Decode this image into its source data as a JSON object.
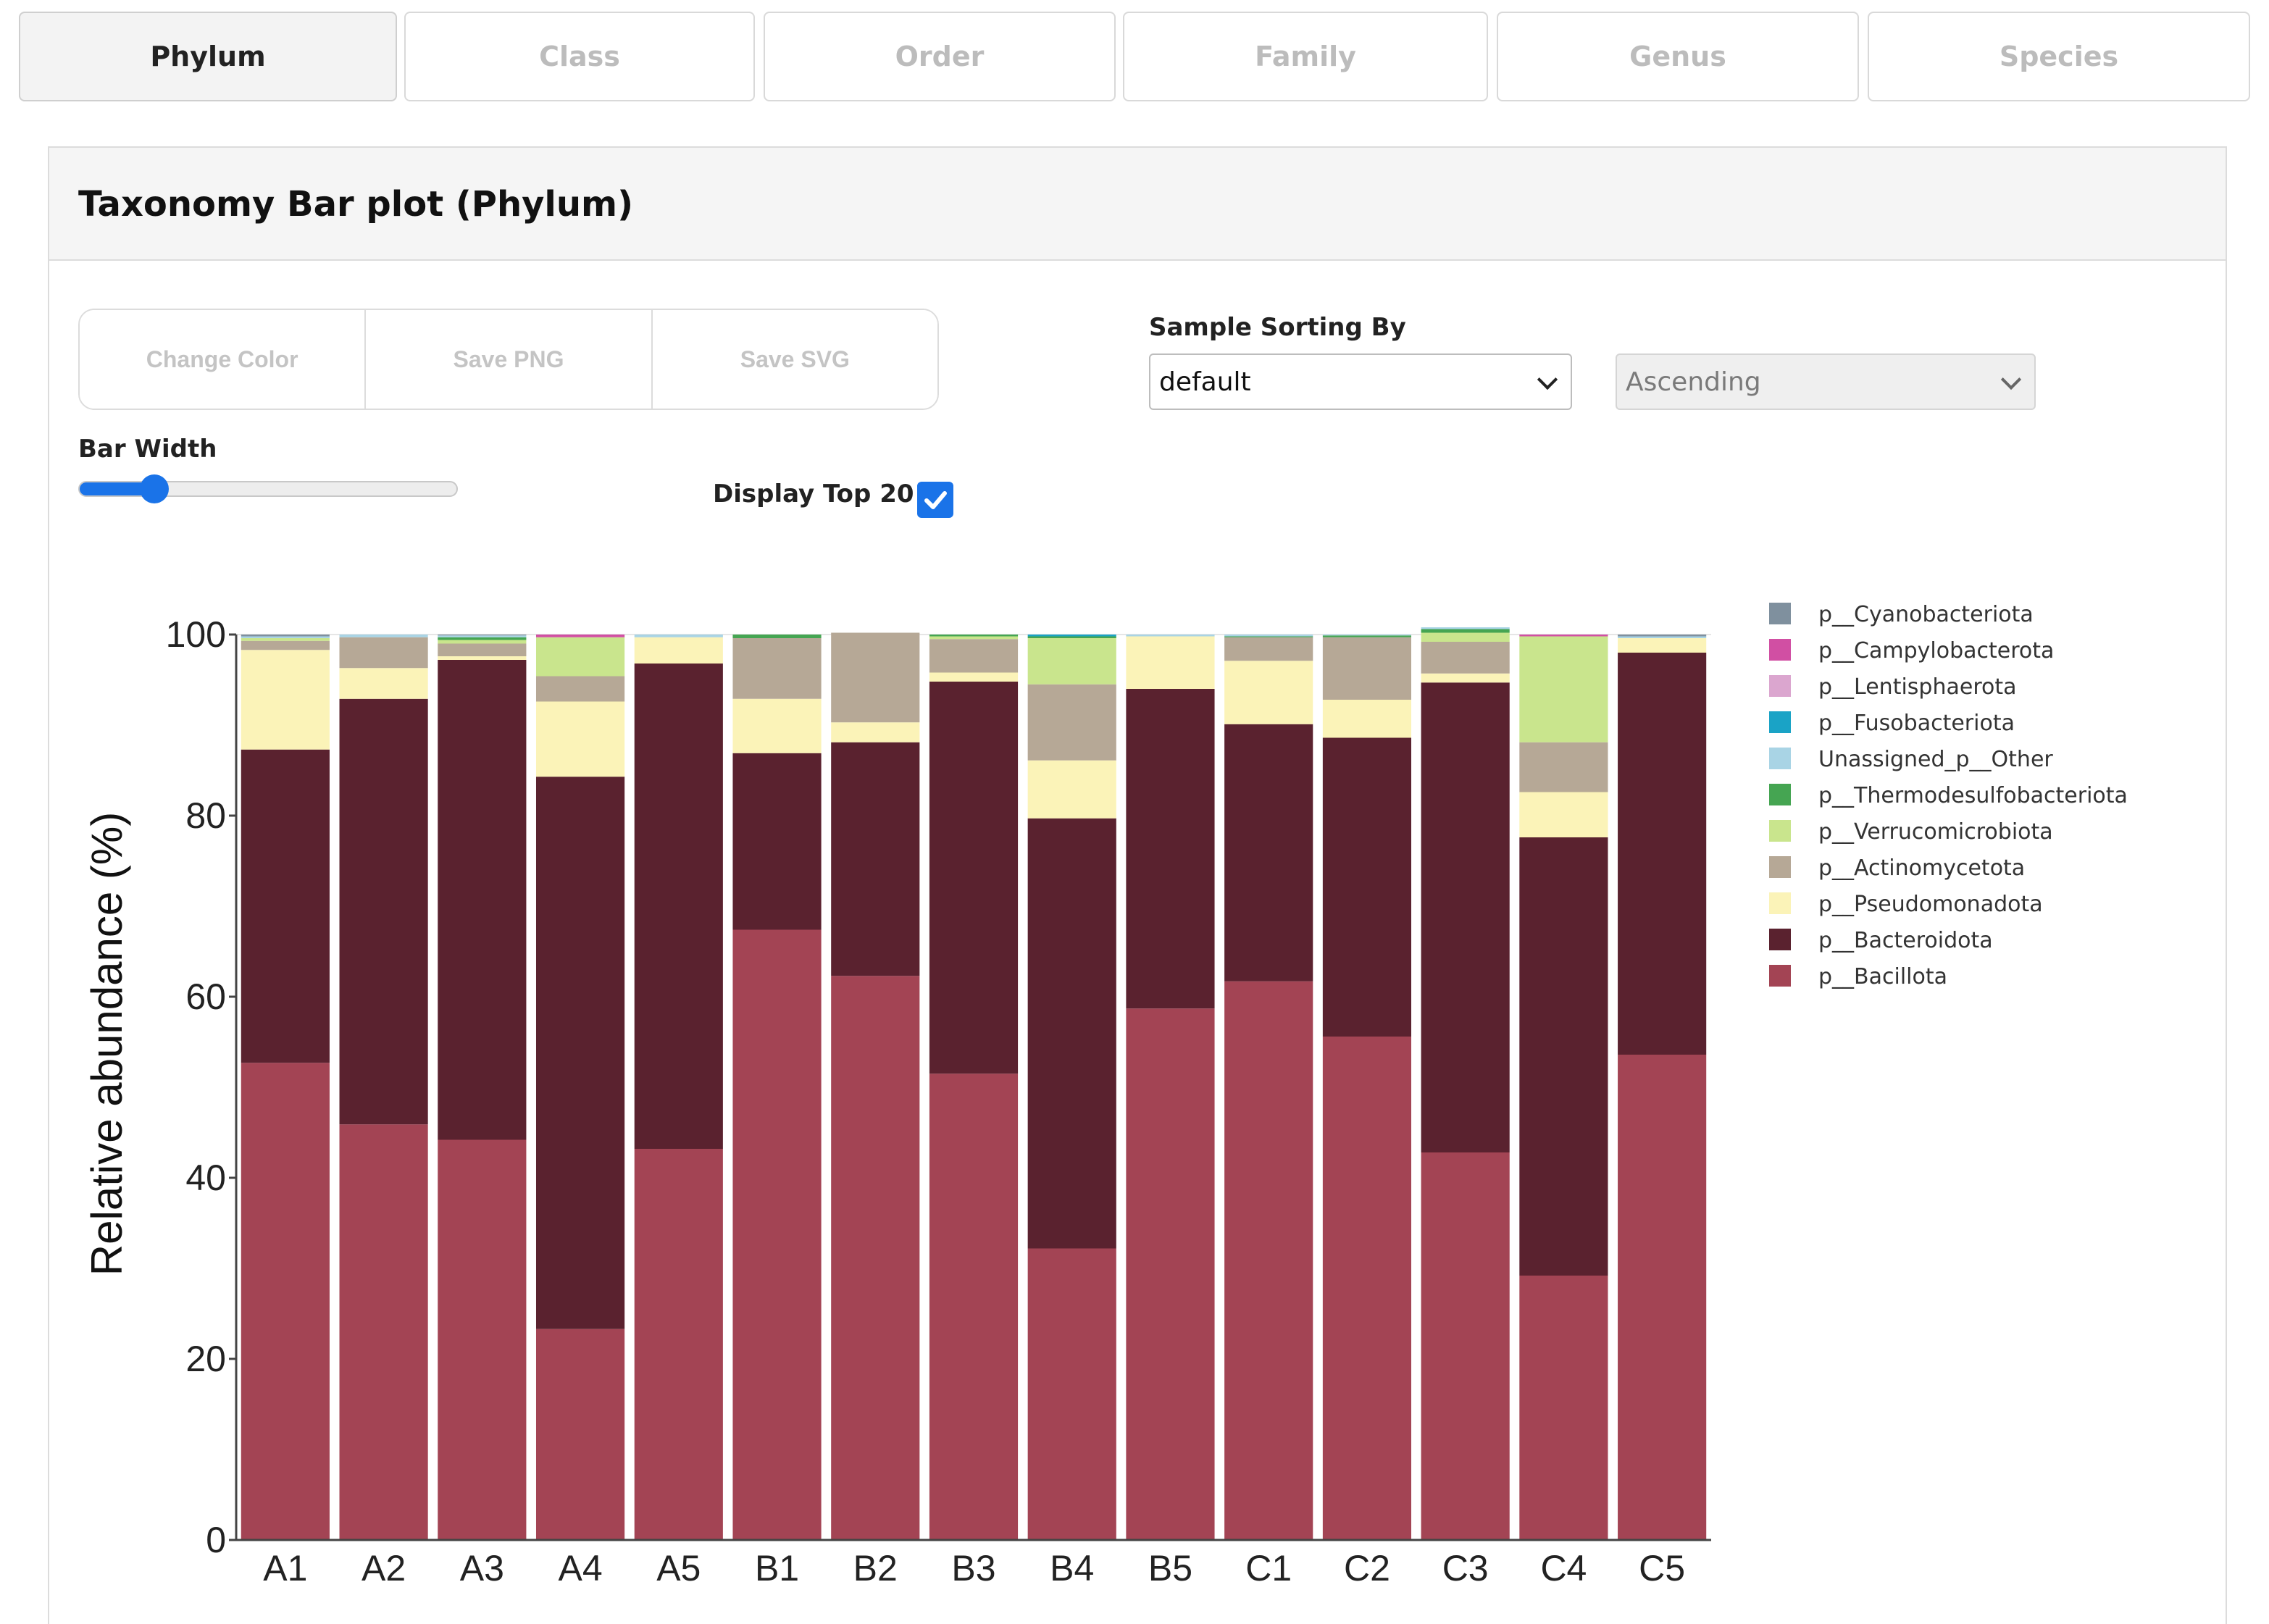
{
  "tabs": [
    {
      "label": "Phylum",
      "active": true
    },
    {
      "label": "Class",
      "active": false
    },
    {
      "label": "Order",
      "active": false
    },
    {
      "label": "Family",
      "active": false
    },
    {
      "label": "Genus",
      "active": false
    },
    {
      "label": "Species",
      "active": false
    }
  ],
  "panel": {
    "title": "Taxonomy Bar plot (Phylum)"
  },
  "toolbar": {
    "change_color_label": "Change Color",
    "save_png_label": "Save PNG",
    "save_svg_label": "Save SVG"
  },
  "sorting": {
    "label": "Sample Sorting By",
    "selected": "default",
    "order_selected": "Ascending"
  },
  "bar_width": {
    "label": "Bar Width",
    "value_fraction": 0.2
  },
  "display_top": {
    "label": "Display Top 20 :",
    "checked": true
  },
  "colors": {
    "accent": "#1a73e8"
  },
  "chart_data": {
    "type": "bar",
    "stacked": true,
    "ylabel": "Relative abundance (%)",
    "ylim": [
      0,
      100
    ],
    "yticks": [
      0,
      20,
      40,
      60,
      80,
      100
    ],
    "categories": [
      "A1",
      "A2",
      "A3",
      "A4",
      "A5",
      "B1",
      "B2",
      "B3",
      "B4",
      "B5",
      "C1",
      "C2",
      "C3",
      "C4",
      "C5"
    ],
    "series": [
      {
        "name": "p__Bacillota",
        "color": "#a34454",
        "values": [
          52.7,
          45.9,
          44.2,
          23.3,
          43.2,
          67.4,
          62.3,
          51.5,
          32.2,
          58.7,
          61.7,
          55.6,
          42.8,
          29.2,
          53.6
        ]
      },
      {
        "name": "p__Bacteroidota",
        "color": "#5a222f",
        "values": [
          34.6,
          47.0,
          53.0,
          61.0,
          53.6,
          19.5,
          25.8,
          43.3,
          47.5,
          35.3,
          28.4,
          33.0,
          51.9,
          48.4,
          44.4
        ]
      },
      {
        "name": "p__Pseudomonadota",
        "color": "#fbf3b8",
        "values": [
          11.0,
          3.4,
          0.4,
          8.3,
          2.9,
          6.0,
          2.2,
          1.0,
          6.4,
          5.8,
          7.0,
          4.2,
          1.0,
          5.0,
          1.6
        ]
      },
      {
        "name": "p__Actinomycetota",
        "color": "#b6a896",
        "values": [
          1.0,
          3.4,
          1.4,
          2.8,
          0,
          6.7,
          9.9,
          3.7,
          8.4,
          0,
          2.6,
          6.9,
          3.5,
          5.5,
          0
        ]
      },
      {
        "name": "p__Verrucomicrobiota",
        "color": "#c9e58d",
        "values": [
          0.3,
          0,
          0.4,
          4.3,
          0,
          0,
          0,
          0.3,
          5.1,
          0,
          0,
          0,
          1.0,
          11.7,
          0
        ]
      },
      {
        "name": "p__Thermodesulfobacteriota",
        "color": "#45a552",
        "values": [
          0,
          0,
          0.3,
          0,
          0,
          0.4,
          0,
          0.2,
          0.2,
          0,
          0.1,
          0.2,
          0.4,
          0,
          0
        ]
      },
      {
        "name": "Unassigned_p__Other",
        "color": "#a9d4e5",
        "values": [
          0.2,
          0.3,
          0.2,
          0,
          0.3,
          0,
          0,
          0,
          0,
          0.2,
          0.2,
          0.1,
          0.2,
          0,
          0.2
        ]
      },
      {
        "name": "p__Fusobacteriota",
        "color": "#1aa3c6",
        "values": [
          0,
          0,
          0,
          0,
          0,
          0,
          0,
          0,
          0.2,
          0,
          0,
          0,
          0,
          0,
          0
        ]
      },
      {
        "name": "p__Lentisphaerota",
        "color": "#dba6cf",
        "values": [
          0,
          0,
          0,
          0,
          0,
          0,
          0,
          0,
          0,
          0,
          0,
          0,
          0,
          0,
          0
        ]
      },
      {
        "name": "p__Campylobacterota",
        "color": "#d14fa3",
        "values": [
          0,
          0,
          0,
          0.3,
          0,
          0,
          0,
          0,
          0,
          0,
          0,
          0,
          0,
          0.2,
          0
        ]
      },
      {
        "name": "p__Cyanobacteriota",
        "color": "#7f909e",
        "values": [
          0.2,
          0,
          0.1,
          0,
          0,
          0,
          0,
          0,
          0,
          0,
          0,
          0,
          0,
          0,
          0.2
        ]
      }
    ],
    "legend": {
      "placement": "right"
    }
  }
}
